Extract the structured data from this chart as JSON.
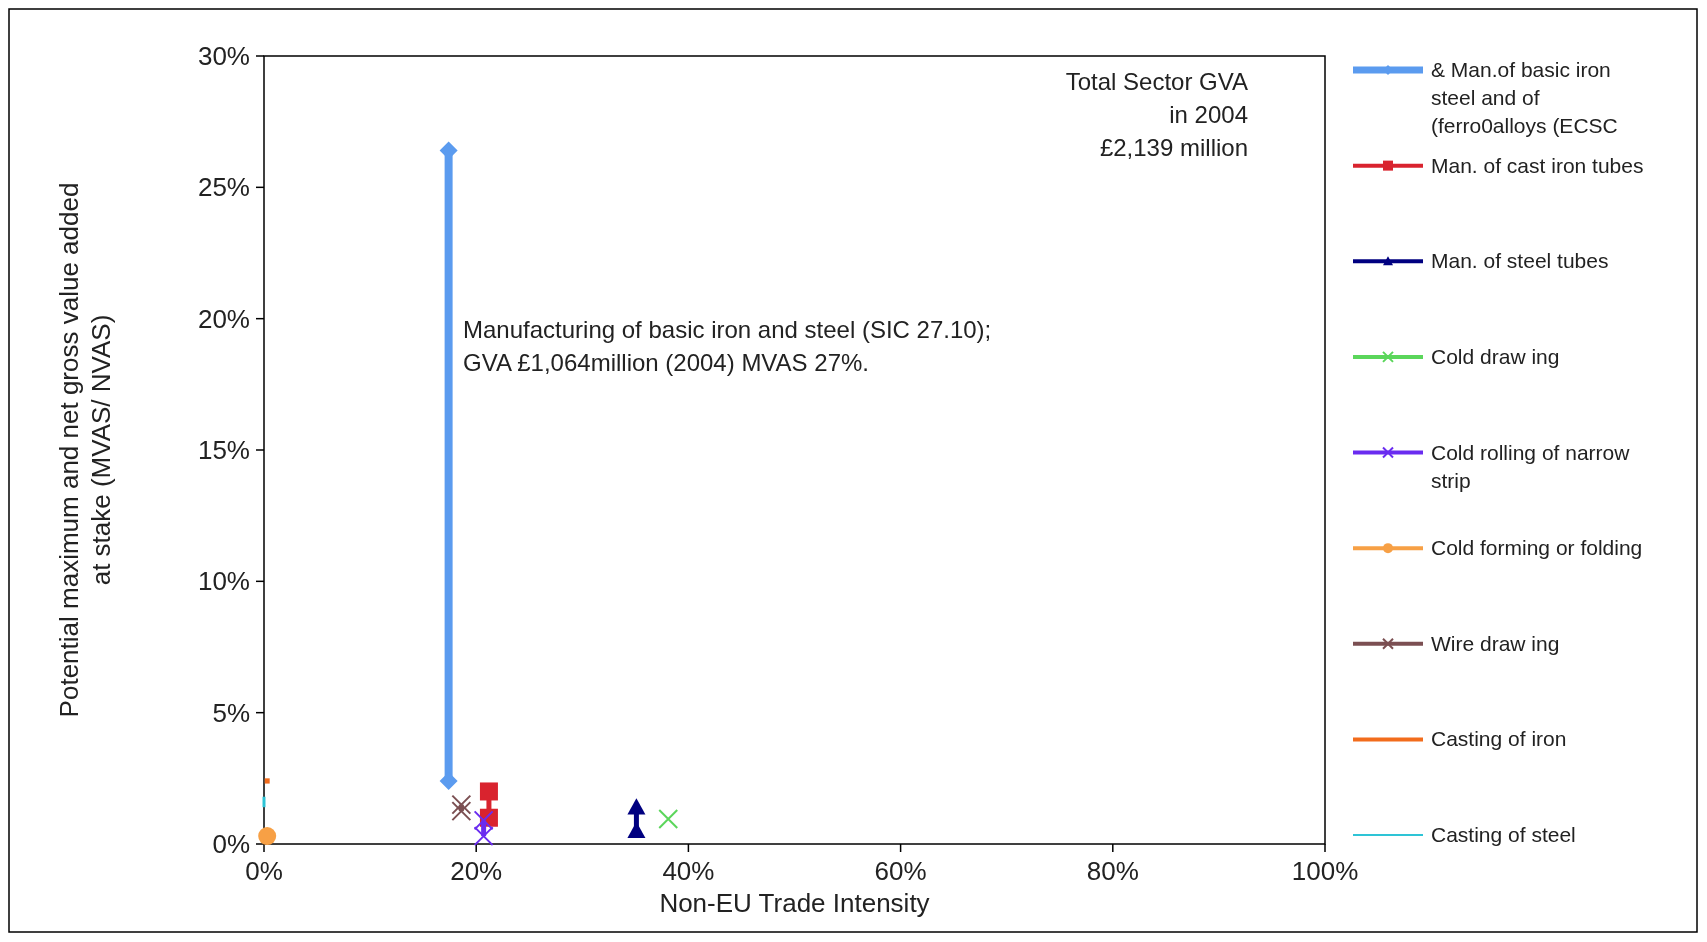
{
  "chart_data": {
    "type": "line",
    "xlabel": "Non-EU Trade Intensity",
    "ylabel": "Potential maximum and net gross value added\nat stake (MVAS/ NVAS)",
    "xlim": [
      0,
      100
    ],
    "ylim": [
      0,
      30
    ],
    "xticks": [
      {
        "value": 0,
        "label": "0%"
      },
      {
        "value": 20,
        "label": "20%"
      },
      {
        "value": 40,
        "label": "40%"
      },
      {
        "value": 60,
        "label": "60%"
      },
      {
        "value": 80,
        "label": "80%"
      },
      {
        "value": 100,
        "label": "100%"
      }
    ],
    "yticks": [
      {
        "value": 0,
        "label": "0%"
      },
      {
        "value": 5,
        "label": "5%"
      },
      {
        "value": 10,
        "label": "10%"
      },
      {
        "value": 15,
        "label": "15%"
      },
      {
        "value": 20,
        "label": "20%"
      },
      {
        "value": 25,
        "label": "25%"
      },
      {
        "value": 30,
        "label": "30%"
      }
    ],
    "grid": false,
    "legend": "right",
    "annotations": [
      "Total Sector GVA\nin 2004\n£2,139 million",
      "Manufacturing of basic iron and steel (SIC 27.10);\nGVA £1,064million (2004) MVAS 27%."
    ],
    "series": [
      {
        "name": "& Man.of basic iron steel and of (ferro0alloys (ECSC",
        "color": "#5b9bef",
        "marker": "diamond",
        "x": [
          17.4,
          17.4
        ],
        "values": [
          2.4,
          26.4
        ]
      },
      {
        "name": "Man. of cast iron tubes",
        "color": "#d9232e",
        "marker": "square",
        "x": [
          21.2,
          21.2
        ],
        "values": [
          1.0,
          2.0
        ]
      },
      {
        "name": "Man. of steel tubes",
        "color": "#000080",
        "marker": "triangle",
        "x": [
          35.1,
          35.1
        ],
        "values": [
          0.5,
          1.4
        ]
      },
      {
        "name": "Cold draw ing",
        "color": "#5bd65b",
        "marker": "cross",
        "x": [
          38.1
        ],
        "values": [
          0.95
        ]
      },
      {
        "name": "Cold rolling of narrow strip",
        "color": "#6a2cf0",
        "marker": "cross",
        "x": [
          20.7,
          20.7
        ],
        "values": [
          0.3,
          0.9
        ]
      },
      {
        "name": "Cold forming or folding",
        "color": "#f7a045",
        "marker": "circle",
        "x": [
          0.3
        ],
        "values": [
          0.3
        ]
      },
      {
        "name": "Wire draw ing",
        "color": "#7b4f52",
        "marker": "cross",
        "x": [
          18.6,
          18.6
        ],
        "values": [
          1.25,
          1.5
        ]
      },
      {
        "name": "Casting of iron",
        "color": "#f26c1c",
        "marker": "none",
        "x": [
          0.3,
          0.3
        ],
        "values": [
          2.3,
          2.5
        ]
      },
      {
        "name": "Casting of steel",
        "color": "#2ec4d6",
        "marker": "none",
        "x": [
          0,
          0
        ],
        "values": [
          1.4,
          1.8
        ]
      }
    ]
  }
}
